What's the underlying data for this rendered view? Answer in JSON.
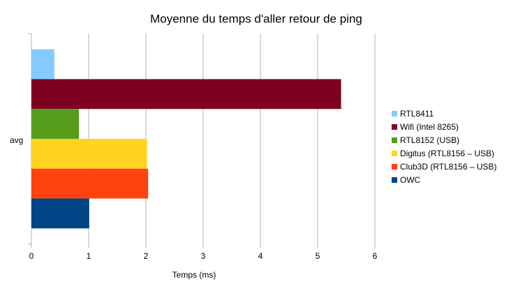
{
  "chart_data": {
    "type": "bar",
    "orientation": "horizontal",
    "title": "Moyenne du temps d'aller retour de ping",
    "x_label": "Temps (ms)",
    "categories": [
      "avg"
    ],
    "series": [
      {
        "name": "RTL8411",
        "color": "#83caff",
        "values": [
          0.4
        ]
      },
      {
        "name": "Wifi (Intel 8265)",
        "color": "#7e0021",
        "values": [
          5.41
        ]
      },
      {
        "name": "RTL8152 (USB)",
        "color": "#579d1c",
        "values": [
          0.83
        ]
      },
      {
        "name": "Digitus (RTL8156 – USB)",
        "color": "#ffd320",
        "values": [
          2.02
        ]
      },
      {
        "name": "Club3D (RTL8156 – USB)",
        "color": "#ff420e",
        "values": [
          2.04
        ]
      },
      {
        "name": "OWC",
        "color": "#004586",
        "values": [
          1.01
        ]
      }
    ],
    "xlim": [
      0,
      6
    ],
    "xticks": [
      0,
      1,
      2,
      3,
      4,
      5,
      6
    ],
    "grid": true,
    "legend": "right"
  }
}
